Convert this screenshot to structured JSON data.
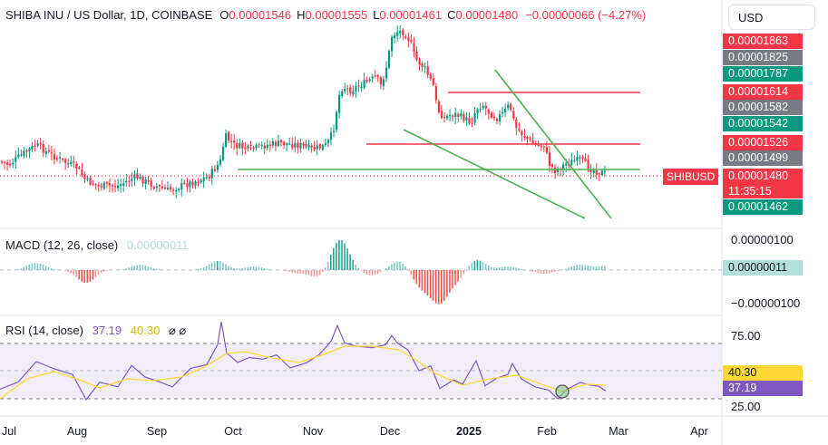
{
  "legend": {
    "title": "SHIBA INU / US Dollar, 1D, COINBASE",
    "open_label": "O",
    "open": "0.00001546",
    "high_label": "H",
    "high": "0.00001555",
    "low_label": "L",
    "low": "0.00001461",
    "close_label": "C",
    "close": "0.00001480",
    "change": "−0.00000066 (−4.27%)"
  },
  "currency": "USD",
  "symbol_tag": "SHIBUSD",
  "countdown": "11:35:15",
  "price_scale": [
    {
      "value": "0.00001863",
      "color": "#f23645"
    },
    {
      "value": "0.00001825",
      "color": "#787b86"
    },
    {
      "value": "0.00001787",
      "color": "#089981"
    },
    {
      "value": "0.00001614",
      "color": "#f23645"
    },
    {
      "value": "0.00001582",
      "color": "#787b86"
    },
    {
      "value": "0.00001542",
      "color": "#089981"
    },
    {
      "value": "0.00001526",
      "color": "#f23645"
    },
    {
      "value": "0.00001499",
      "color": "#787b86"
    },
    {
      "value": "0.00001480",
      "color": "#f23645"
    },
    {
      "value": "0.00001462",
      "color": "#089981"
    }
  ],
  "macd": {
    "label": "MACD (12, 26, close)",
    "value": "0.00000011",
    "scale_top": "0.00000100",
    "scale_bottom": "−0.00000100"
  },
  "rsi": {
    "label": "RSI (14, close)",
    "value": "37.19",
    "ma_value": "40.30",
    "icons": "⌀ ⌀",
    "scale_top": "75.00",
    "scale_bottom": "25.00",
    "value_color": "#7e57c2",
    "ma_color": "#fdd835"
  },
  "x_axis": [
    "Jul",
    "Aug",
    "Sep",
    "Oct",
    "Nov",
    "Dec",
    "2025",
    "Feb",
    "Mar",
    "Apr"
  ],
  "chart_data": {
    "type": "candlestick",
    "title": "SHIBA INU / US Dollar, 1D, COINBASE",
    "x_labels": [
      "Jul",
      "Aug",
      "Sep",
      "Oct",
      "Nov",
      "Dec",
      "2025",
      "Feb",
      "Mar",
      "Apr"
    ],
    "price_approx_close": [
      1.75e-05,
      1.78e-05,
      1.76e-05,
      1.72e-05,
      1.7e-05,
      1.69e-05,
      1.66e-05,
      1.63e-05,
      1.61e-05,
      1.6e-05,
      1.58e-05,
      1.57e-05,
      1.55e-05,
      1.56e-05,
      1.57e-05,
      1.58e-05,
      1.57e-05,
      1.59e-05,
      1.62e-05,
      1.65e-05,
      1.68e-05,
      1.7e-05,
      1.72e-05,
      1.74e-05,
      1.73e-05,
      1.75e-05,
      1.77e-05,
      1.8e-05,
      1.85e-05,
      2.05e-05,
      2.15e-05,
      2.25e-05,
      2.3e-05,
      2.35e-05,
      2.45e-05,
      2.5e-05,
      2.65e-05,
      2.7e-05,
      2.75e-05,
      2.8e-05,
      3e-05,
      3.1e-05,
      3.05e-05,
      2.95e-05,
      2.8e-05,
      2.65e-05,
      2.4e-05,
      2.25e-05,
      2.2e-05,
      2.15e-05,
      2.1e-05,
      2.12e-05,
      2.08e-05,
      2.05e-05,
      2e-05,
      1.95e-05,
      1.85e-05,
      1.75e-05,
      1.6e-05,
      1.55e-05,
      1.5e-05,
      1.55e-05,
      1.52e-05,
      1.5e-05,
      1.48e-05
    ],
    "horizontal_levels": [
      "0.00001863",
      "0.00001614",
      "0.00001526",
      "0.00001480"
    ],
    "macd_value": 1.1e-07,
    "rsi_value": 37.19,
    "rsi_ma_value": 40.3,
    "rsi_bands": [
      70,
      30
    ]
  }
}
